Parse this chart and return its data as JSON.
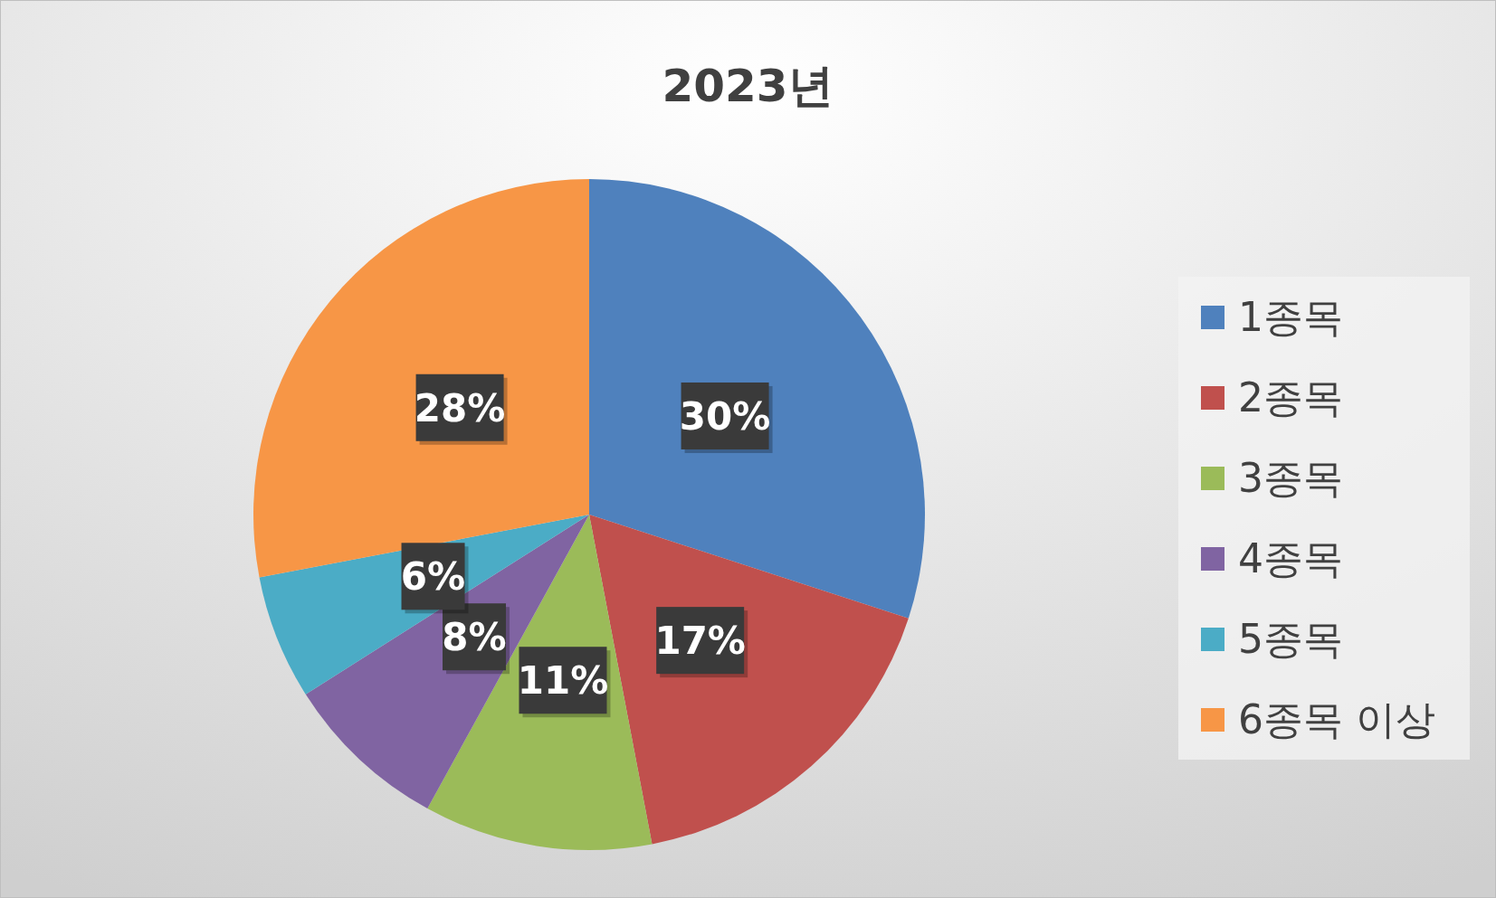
{
  "chart_data": {
    "type": "pie",
    "title": "2023년",
    "categories": [
      "1종목",
      "2종목",
      "3종목",
      "4종목",
      "5종목",
      "6종목 이상"
    ],
    "values": [
      30,
      17,
      11,
      8,
      6,
      28
    ],
    "colors": [
      "#4f81bd",
      "#c0504d",
      "#9bbb59",
      "#8064a2",
      "#4bacc6",
      "#f79646"
    ],
    "value_labels": [
      "30%",
      "17%",
      "11%",
      "8%",
      "6%",
      "28%"
    ],
    "legend": "right"
  }
}
